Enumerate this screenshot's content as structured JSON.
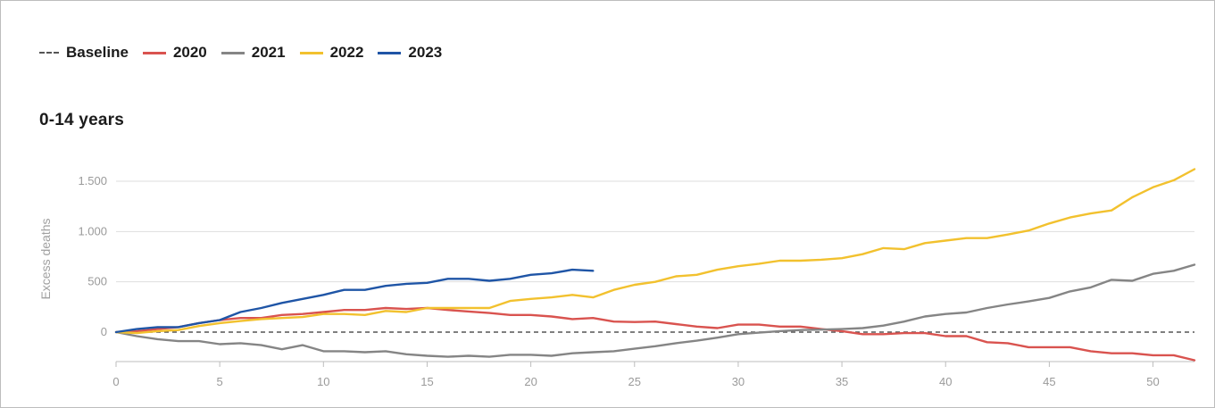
{
  "colors": {
    "baseline": "#555555",
    "2020": "#d9534f",
    "2021": "#858585",
    "2022": "#f2c12e",
    "2023": "#1f55a6",
    "grid": "#dedede",
    "axis": "#bdbdbd"
  },
  "legend": {
    "items": [
      {
        "key": "baseline",
        "label": "Baseline",
        "style": "dashed"
      },
      {
        "key": "2020",
        "label": "2020",
        "style": "solid"
      },
      {
        "key": "2021",
        "label": "2021",
        "style": "solid"
      },
      {
        "key": "2022",
        "label": "2022",
        "style": "solid"
      },
      {
        "key": "2023",
        "label": "2023",
        "style": "solid"
      }
    ]
  },
  "chart_data": {
    "type": "line",
    "title": "0-14 years",
    "xlabel": "",
    "ylabel": "Excess deaths",
    "xlim": [
      0,
      52
    ],
    "ylim": [
      -300,
      1800
    ],
    "x_ticks": [
      0,
      5,
      10,
      15,
      20,
      25,
      30,
      35,
      40,
      45,
      50
    ],
    "y_ticks": [
      0,
      500,
      1000,
      1500
    ],
    "y_tick_labels": [
      "0",
      "500",
      "1.000",
      "1.500"
    ],
    "grid": "horizontal",
    "legend_position": "top-left",
    "baseline": {
      "name": "Baseline",
      "value": 0
    },
    "series": [
      {
        "name": "2020",
        "key": "2020",
        "x": [
          0,
          1,
          2,
          3,
          4,
          5,
          6,
          7,
          8,
          9,
          10,
          11,
          12,
          13,
          14,
          15,
          16,
          17,
          18,
          19,
          20,
          21,
          22,
          23,
          24,
          25,
          26,
          27,
          28,
          29,
          30,
          31,
          32,
          33,
          34,
          35,
          36,
          37,
          38,
          39,
          40,
          41,
          42,
          43,
          44,
          45,
          46,
          47,
          48,
          49,
          50,
          51,
          52
        ],
        "values": [
          0,
          10,
          30,
          50,
          90,
          120,
          140,
          140,
          170,
          180,
          200,
          220,
          220,
          240,
          230,
          240,
          220,
          205,
          190,
          170,
          170,
          155,
          130,
          140,
          105,
          100,
          105,
          80,
          55,
          40,
          75,
          75,
          55,
          55,
          30,
          10,
          -20,
          -20,
          -10,
          -10,
          -40,
          -40,
          -100,
          -110,
          -150,
          -150,
          -150,
          -190,
          -210,
          -210,
          -230,
          -230,
          -280
        ]
      },
      {
        "name": "2021",
        "key": "2021",
        "x": [
          0,
          1,
          2,
          3,
          4,
          5,
          6,
          7,
          8,
          9,
          10,
          11,
          12,
          13,
          14,
          15,
          16,
          17,
          18,
          19,
          20,
          21,
          22,
          23,
          24,
          25,
          26,
          27,
          28,
          29,
          30,
          31,
          32,
          33,
          34,
          35,
          36,
          37,
          38,
          39,
          40,
          41,
          42,
          43,
          44,
          45,
          46,
          47,
          48,
          49,
          50,
          51,
          52
        ],
        "values": [
          0,
          -40,
          -70,
          -90,
          -90,
          -120,
          -110,
          -130,
          -170,
          -130,
          -190,
          -190,
          -200,
          -190,
          -220,
          -235,
          -245,
          -235,
          -245,
          -225,
          -225,
          -235,
          -210,
          -200,
          -190,
          -165,
          -140,
          -110,
          -85,
          -55,
          -20,
          -5,
          10,
          20,
          25,
          30,
          40,
          65,
          105,
          155,
          180,
          195,
          240,
          275,
          305,
          340,
          405,
          445,
          520,
          510,
          580,
          610,
          670
        ]
      },
      {
        "name": "2022",
        "key": "2022",
        "x": [
          0,
          1,
          2,
          3,
          4,
          5,
          6,
          7,
          8,
          9,
          10,
          11,
          12,
          13,
          14,
          15,
          16,
          17,
          18,
          19,
          20,
          21,
          22,
          23,
          24,
          25,
          26,
          27,
          28,
          29,
          30,
          31,
          32,
          33,
          34,
          35,
          36,
          37,
          38,
          39,
          40,
          41,
          42,
          43,
          44,
          45,
          46,
          47,
          48,
          49,
          50,
          51,
          52
        ],
        "values": [
          0,
          -10,
          10,
          20,
          60,
          90,
          110,
          130,
          140,
          150,
          180,
          180,
          170,
          210,
          200,
          240,
          240,
          240,
          240,
          310,
          330,
          345,
          370,
          345,
          420,
          470,
          500,
          555,
          570,
          620,
          655,
          680,
          710,
          710,
          720,
          735,
          775,
          835,
          825,
          885,
          910,
          935,
          935,
          970,
          1010,
          1080,
          1140,
          1180,
          1210,
          1340,
          1440,
          1510,
          1620
        ]
      },
      {
        "name": "2023",
        "key": "2023",
        "x": [
          0,
          1,
          2,
          3,
          4,
          5,
          6,
          7,
          8,
          9,
          10,
          11,
          12,
          13,
          14,
          15,
          16,
          17,
          18,
          19,
          20,
          21,
          22,
          23
        ],
        "values": [
          0,
          30,
          50,
          50,
          90,
          120,
          200,
          240,
          290,
          330,
          370,
          420,
          420,
          460,
          480,
          490,
          530,
          530,
          510,
          530,
          570,
          585,
          620,
          610
        ]
      }
    ]
  }
}
